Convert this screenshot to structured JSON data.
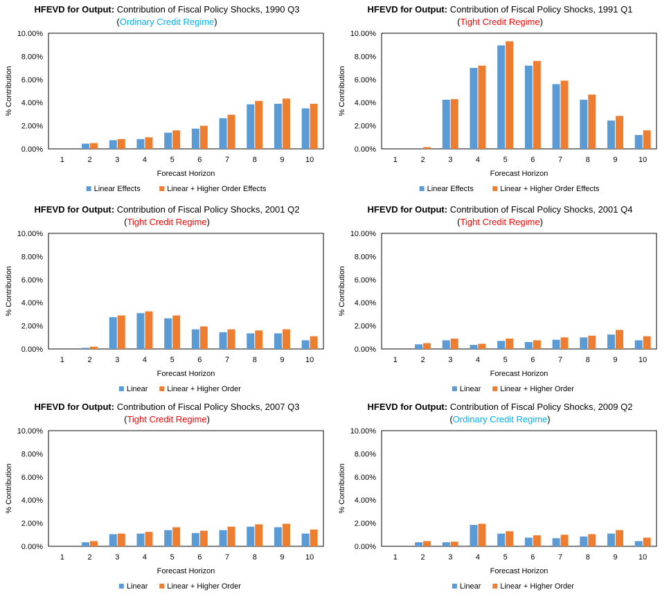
{
  "chart_data": [
    {
      "type": "bar",
      "title_bold": "HFEVD for Output:",
      "title_rest": "Contribution of Fiscal Policy Shocks, 1990 Q3",
      "regime": "Ordinary Credit Regime",
      "regime_color": "#00b0f0",
      "categories": [
        "1",
        "2",
        "3",
        "4",
        "5",
        "6",
        "7",
        "8",
        "9",
        "10"
      ],
      "series": [
        {
          "name": "Linear Effects",
          "color": "#5b9bd5",
          "values": [
            0.0,
            0.45,
            0.75,
            0.85,
            1.4,
            1.75,
            2.65,
            3.85,
            3.9,
            3.5
          ]
        },
        {
          "name": "Linear + Higher Order Effects",
          "color": "#ed7d31",
          "values": [
            0.0,
            0.5,
            0.85,
            1.0,
            1.6,
            2.0,
            2.95,
            4.15,
            4.35,
            3.9
          ]
        }
      ],
      "yticks": [
        "0.00%",
        "2.00%",
        "4.00%",
        "6.00%",
        "8.00%",
        "10.00%"
      ],
      "ylim": [
        0,
        10
      ],
      "xlabel": "Forecast Horizon",
      "ylabel": "% Contribution"
    },
    {
      "type": "bar",
      "title_bold": "HFEVD for Output:",
      "title_rest": "Contribution of Fiscal Policy Shocks, 1991 Q1",
      "regime": "Tight Credit Regime",
      "regime_color": "#ff0000",
      "categories": [
        "1",
        "2",
        "3",
        "4",
        "5",
        "6",
        "7",
        "8",
        "9",
        "10"
      ],
      "series": [
        {
          "name": "Linear Effects",
          "color": "#5b9bd5",
          "values": [
            0.0,
            0.0,
            4.25,
            7.0,
            8.95,
            7.2,
            5.6,
            4.25,
            2.45,
            1.2
          ]
        },
        {
          "name": "Linear + Higher Order Effects",
          "color": "#ed7d31",
          "values": [
            0.0,
            0.15,
            4.3,
            7.2,
            9.3,
            7.6,
            5.9,
            4.7,
            2.85,
            1.6
          ]
        }
      ],
      "yticks": [
        "0.00%",
        "2.00%",
        "4.00%",
        "6.00%",
        "8.00%",
        "10.00%"
      ],
      "ylim": [
        0,
        10
      ],
      "xlabel": "Forecast Horizon",
      "ylabel": "% Contribution"
    },
    {
      "type": "bar",
      "title_bold": "HFEVD for Output:",
      "title_rest": "Contribution of Fiscal Policy Shocks, 2001 Q2",
      "regime": "Tight Credit Regime",
      "regime_color": "#ff0000",
      "categories": [
        "1",
        "2",
        "3",
        "4",
        "5",
        "6",
        "7",
        "8",
        "9",
        "10"
      ],
      "series": [
        {
          "name": "Linear",
          "color": "#5b9bd5",
          "values": [
            0.0,
            0.1,
            2.75,
            3.1,
            2.65,
            1.7,
            1.45,
            1.35,
            1.35,
            0.75
          ]
        },
        {
          "name": "Linear + Higher Order",
          "color": "#ed7d31",
          "values": [
            0.0,
            0.2,
            2.9,
            3.25,
            2.9,
            1.95,
            1.7,
            1.6,
            1.7,
            1.1
          ]
        }
      ],
      "yticks": [
        "0.00%",
        "2.00%",
        "4.00%",
        "6.00%",
        "8.00%",
        "10.00%"
      ],
      "ylim": [
        0,
        10
      ],
      "xlabel": "Forecast Horizon",
      "ylabel": "% Contribution"
    },
    {
      "type": "bar",
      "title_bold": "HFEVD for Output:",
      "title_rest": "Contribution of Fiscal Policy Shocks, 2001 Q4",
      "regime": "Tight Credit Regime",
      "regime_color": "#ff0000",
      "categories": [
        "1",
        "2",
        "3",
        "4",
        "5",
        "6",
        "7",
        "8",
        "9",
        "10"
      ],
      "series": [
        {
          "name": "Linear",
          "color": "#5b9bd5",
          "values": [
            0.0,
            0.4,
            0.75,
            0.35,
            0.7,
            0.6,
            0.8,
            1.0,
            1.25,
            0.75
          ]
        },
        {
          "name": "Linear + Higher Order",
          "color": "#ed7d31",
          "values": [
            0.0,
            0.5,
            0.9,
            0.45,
            0.9,
            0.75,
            1.0,
            1.15,
            1.65,
            1.1
          ]
        }
      ],
      "yticks": [
        "0.00%",
        "2.00%",
        "4.00%",
        "6.00%",
        "8.00%",
        "10.00%"
      ],
      "ylim": [
        0,
        10
      ],
      "xlabel": "Forecast Horizon",
      "ylabel": "% Contribution"
    },
    {
      "type": "bar",
      "title_bold": "HFEVD for Output:",
      "title_rest": "Contribution of Fiscal Policy Shocks, 2007 Q3",
      "regime": "Tight Credit Regime",
      "regime_color": "#ff0000",
      "categories": [
        "1",
        "2",
        "3",
        "4",
        "5",
        "6",
        "7",
        "8",
        "9",
        "10"
      ],
      "series": [
        {
          "name": "Linear",
          "color": "#5b9bd5",
          "values": [
            0.0,
            0.35,
            1.05,
            1.1,
            1.4,
            1.15,
            1.4,
            1.7,
            1.65,
            1.1
          ]
        },
        {
          "name": "Linear + Higher Order",
          "color": "#ed7d31",
          "values": [
            0.0,
            0.45,
            1.1,
            1.25,
            1.65,
            1.35,
            1.7,
            1.9,
            1.95,
            1.45
          ]
        }
      ],
      "yticks": [
        "0.00%",
        "2.00%",
        "4.00%",
        "6.00%",
        "8.00%",
        "10.00%"
      ],
      "ylim": [
        0,
        10
      ],
      "xlabel": "Forecast Horizon",
      "ylabel": "% Contribution"
    },
    {
      "type": "bar",
      "title_bold": "HFEVD for Output:",
      "title_rest": "Contribution of Fiscal Policy Shocks, 2009 Q2",
      "regime": "Ordinary Credit Regime",
      "regime_color": "#00b0f0",
      "categories": [
        "1",
        "2",
        "3",
        "4",
        "5",
        "6",
        "7",
        "8",
        "9",
        "10"
      ],
      "series": [
        {
          "name": "Linear",
          "color": "#5b9bd5",
          "values": [
            0.0,
            0.35,
            0.35,
            1.85,
            1.1,
            0.75,
            0.7,
            0.85,
            1.1,
            0.45
          ]
        },
        {
          "name": "Linear + Higher Order",
          "color": "#ed7d31",
          "values": [
            0.0,
            0.45,
            0.4,
            1.95,
            1.3,
            0.95,
            1.0,
            1.05,
            1.4,
            0.75
          ]
        }
      ],
      "yticks": [
        "0.00%",
        "2.00%",
        "4.00%",
        "6.00%",
        "8.00%",
        "10.00%"
      ],
      "ylim": [
        0,
        10
      ],
      "xlabel": "Forecast Horizon",
      "ylabel": "% Contribution"
    }
  ]
}
